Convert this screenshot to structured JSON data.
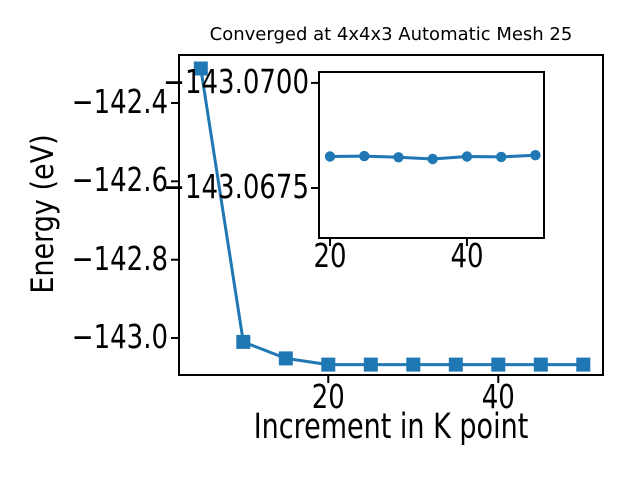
{
  "figure_title": "Converged at 4x4x3 Automatic Mesh 25",
  "colors": {
    "series_blue": "#1f77b4",
    "axis_black": "#000000",
    "background": "#ffffff"
  },
  "chart_data": [
    {
      "id": "main",
      "type": "line",
      "marker": "square",
      "title": "Converged at 4x4x3 Automatic Mesh 25",
      "xlabel": "Increment in K point",
      "ylabel": "Energy (eV)",
      "x": [
        5,
        10,
        15,
        20,
        25,
        30,
        35,
        40,
        45,
        50
      ],
      "y": [
        -142.312,
        -143.01,
        -143.052,
        -143.068,
        -143.068,
        -143.068,
        -143.068,
        -143.068,
        -143.068,
        -143.068
      ],
      "xlim": [
        2.44,
        52.32
      ],
      "ylim": [
        -143.0945,
        -142.2775
      ],
      "xticks": [
        20,
        40
      ],
      "xtick_labels": [
        "20",
        "40"
      ],
      "yticks": [
        -142.4,
        -142.6,
        -142.8,
        -143.0
      ],
      "ytick_labels": [
        "−142.4",
        "−142.6",
        "−142.8",
        "−143.0"
      ],
      "grid": false,
      "legend": null,
      "line_color": "#1f77b4",
      "line_width": 3,
      "marker_size": 14
    },
    {
      "id": "inset",
      "type": "line",
      "marker": "circle",
      "title": "",
      "xlabel": "",
      "ylabel": "",
      "x": [
        20,
        25,
        30,
        35,
        40,
        45,
        50
      ],
      "y": [
        -143.06825,
        -143.06826,
        -143.06823,
        -143.06819,
        -143.06825,
        -143.06824,
        -143.06828
      ],
      "xlim": [
        18.39,
        51.25
      ],
      "ylim": [
        -143.06631,
        -143.07026
      ],
      "y_axis_inverted": true,
      "xticks": [
        20,
        40
      ],
      "xtick_labels": [
        "20",
        "40"
      ],
      "yticks": [
        -143.07,
        -143.0675
      ],
      "ytick_labels": [
        "−143.0700",
        "−143.0675"
      ],
      "grid": false,
      "legend": null,
      "line_color": "#1f77b4",
      "line_width": 3,
      "marker_size": 10.4
    }
  ]
}
